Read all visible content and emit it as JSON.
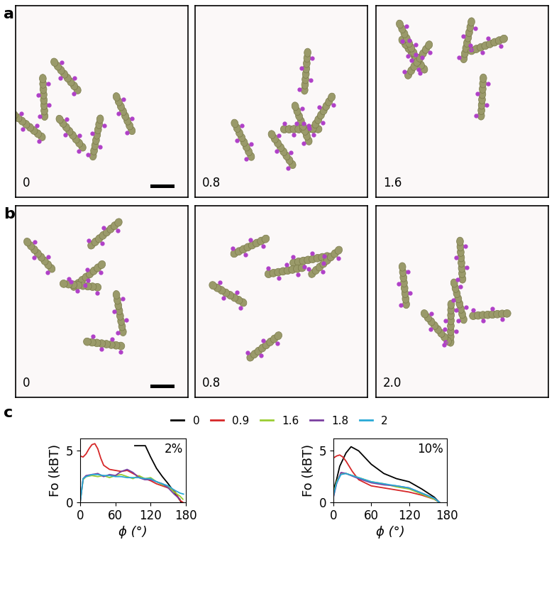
{
  "panels": [
    {
      "label": "a",
      "snapshots": [
        "0",
        "0.8",
        "1.6"
      ]
    },
    {
      "label": "b",
      "snapshots": [
        "0",
        "0.8",
        "2.0"
      ]
    }
  ],
  "panel_c_label": "c",
  "chart_data": [
    {
      "type": "line",
      "annotation": "2%",
      "x_label": "ϕ (°)",
      "y_label": "Fo (kBT)",
      "xlim": [
        0,
        180
      ],
      "xticks": [
        0,
        60,
        120,
        180
      ],
      "ylim": [
        0,
        6.2
      ],
      "yticks": [
        0,
        5
      ],
      "legend": "upper center",
      "series": [
        {
          "name": "0",
          "color": "#000000",
          "x": [
            93,
            111,
            120,
            130,
            140,
            150,
            160,
            170,
            172
          ],
          "values": [
            5.5,
            5.5,
            4.4,
            3.3,
            2.5,
            1.8,
            1.0,
            0.2,
            0
          ]
        },
        {
          "name": "0.9",
          "color": "#d62728",
          "x": [
            0,
            5,
            10,
            15,
            20,
            25,
            30,
            35,
            40,
            50,
            60,
            70,
            80,
            90,
            100,
            110,
            120,
            130,
            140,
            150,
            160,
            170,
            175
          ],
          "values": [
            4.5,
            4.4,
            4.7,
            5.2,
            5.6,
            5.7,
            5.2,
            4.3,
            3.6,
            3.2,
            3.1,
            3.0,
            3.1,
            2.8,
            2.5,
            2.3,
            2.1,
            1.8,
            1.6,
            1.4,
            1.2,
            0.2,
            0
          ]
        },
        {
          "name": "1.6",
          "color": "#9acd32",
          "x": [
            0,
            5,
            10,
            20,
            30,
            40,
            50,
            60,
            70,
            80,
            90,
            100,
            110,
            120,
            130,
            140,
            150,
            160,
            170,
            175
          ],
          "values": [
            0,
            2.2,
            2.5,
            2.6,
            2.5,
            2.6,
            2.4,
            2.6,
            2.7,
            2.5,
            2.3,
            2.6,
            2.3,
            2.4,
            2.0,
            1.7,
            1.5,
            1.0,
            0.6,
            0.3
          ]
        },
        {
          "name": "1.8",
          "color": "#7b3fa0",
          "x": [
            0,
            5,
            10,
            20,
            30,
            40,
            50,
            60,
            70,
            80,
            90,
            100,
            110,
            120,
            130,
            140,
            150,
            160,
            170
          ],
          "values": [
            0,
            2.3,
            2.6,
            2.7,
            2.8,
            2.5,
            2.7,
            2.6,
            3.0,
            3.2,
            2.9,
            2.4,
            2.2,
            2.2,
            2.0,
            1.8,
            1.4,
            0.8,
            0.3
          ]
        },
        {
          "name": "2",
          "color": "#29a9d6",
          "x": [
            0,
            5,
            10,
            20,
            30,
            40,
            50,
            60,
            70,
            80,
            90,
            100,
            110,
            120,
            130,
            140,
            150,
            160,
            170,
            176
          ],
          "values": [
            0,
            2.3,
            2.5,
            2.7,
            2.7,
            2.6,
            2.6,
            2.5,
            2.5,
            2.4,
            2.4,
            2.4,
            2.3,
            2.3,
            2.0,
            1.8,
            1.6,
            1.2,
            0.9,
            0.8
          ]
        }
      ]
    },
    {
      "type": "line",
      "annotation": "10%",
      "x_label": "ϕ (°)",
      "y_label": "Fo (kBT)",
      "xlim": [
        0,
        180
      ],
      "xticks": [
        0,
        60,
        120,
        180
      ],
      "ylim": [
        0,
        6.2
      ],
      "yticks": [
        0,
        5
      ],
      "series": [
        {
          "name": "0",
          "color": "#000000",
          "x": [
            0,
            5,
            10,
            20,
            28,
            40,
            60,
            80,
            100,
            120,
            140,
            160,
            168
          ],
          "values": [
            1.2,
            2.2,
            3.5,
            4.8,
            5.4,
            5.0,
            3.7,
            2.8,
            2.3,
            2.0,
            1.3,
            0.5,
            0
          ]
        },
        {
          "name": "0.9",
          "color": "#d62728",
          "x": [
            0,
            5,
            10,
            15,
            20,
            30,
            40,
            60,
            80,
            100,
            120,
            140,
            160,
            168
          ],
          "values": [
            4.3,
            4.5,
            4.6,
            4.4,
            4.0,
            3.0,
            2.2,
            1.6,
            1.4,
            1.2,
            1.0,
            0.7,
            0.3,
            0
          ]
        },
        {
          "name": "1.6",
          "color": "#9acd32",
          "x": [
            0,
            5,
            12,
            20,
            40,
            60,
            80,
            100,
            120,
            140,
            160,
            168
          ],
          "values": [
            0.8,
            2.0,
            2.8,
            2.8,
            2.4,
            2.0,
            1.8,
            1.5,
            1.3,
            0.8,
            0.3,
            0
          ]
        },
        {
          "name": "1.8",
          "color": "#7b3fa0",
          "x": [
            0,
            5,
            12,
            20,
            40,
            60,
            80,
            100,
            120,
            140,
            160,
            168
          ],
          "values": [
            0.5,
            1.8,
            2.9,
            2.8,
            2.3,
            1.9,
            1.7,
            1.6,
            1.4,
            0.9,
            0.4,
            0
          ]
        },
        {
          "name": "2",
          "color": "#29a9d6",
          "x": [
            0,
            5,
            12,
            20,
            40,
            60,
            80,
            100,
            120,
            140,
            160,
            168
          ],
          "values": [
            0.6,
            1.9,
            2.7,
            2.8,
            2.4,
            2.0,
            1.8,
            1.6,
            1.4,
            0.9,
            0.4,
            0
          ]
        }
      ]
    }
  ]
}
